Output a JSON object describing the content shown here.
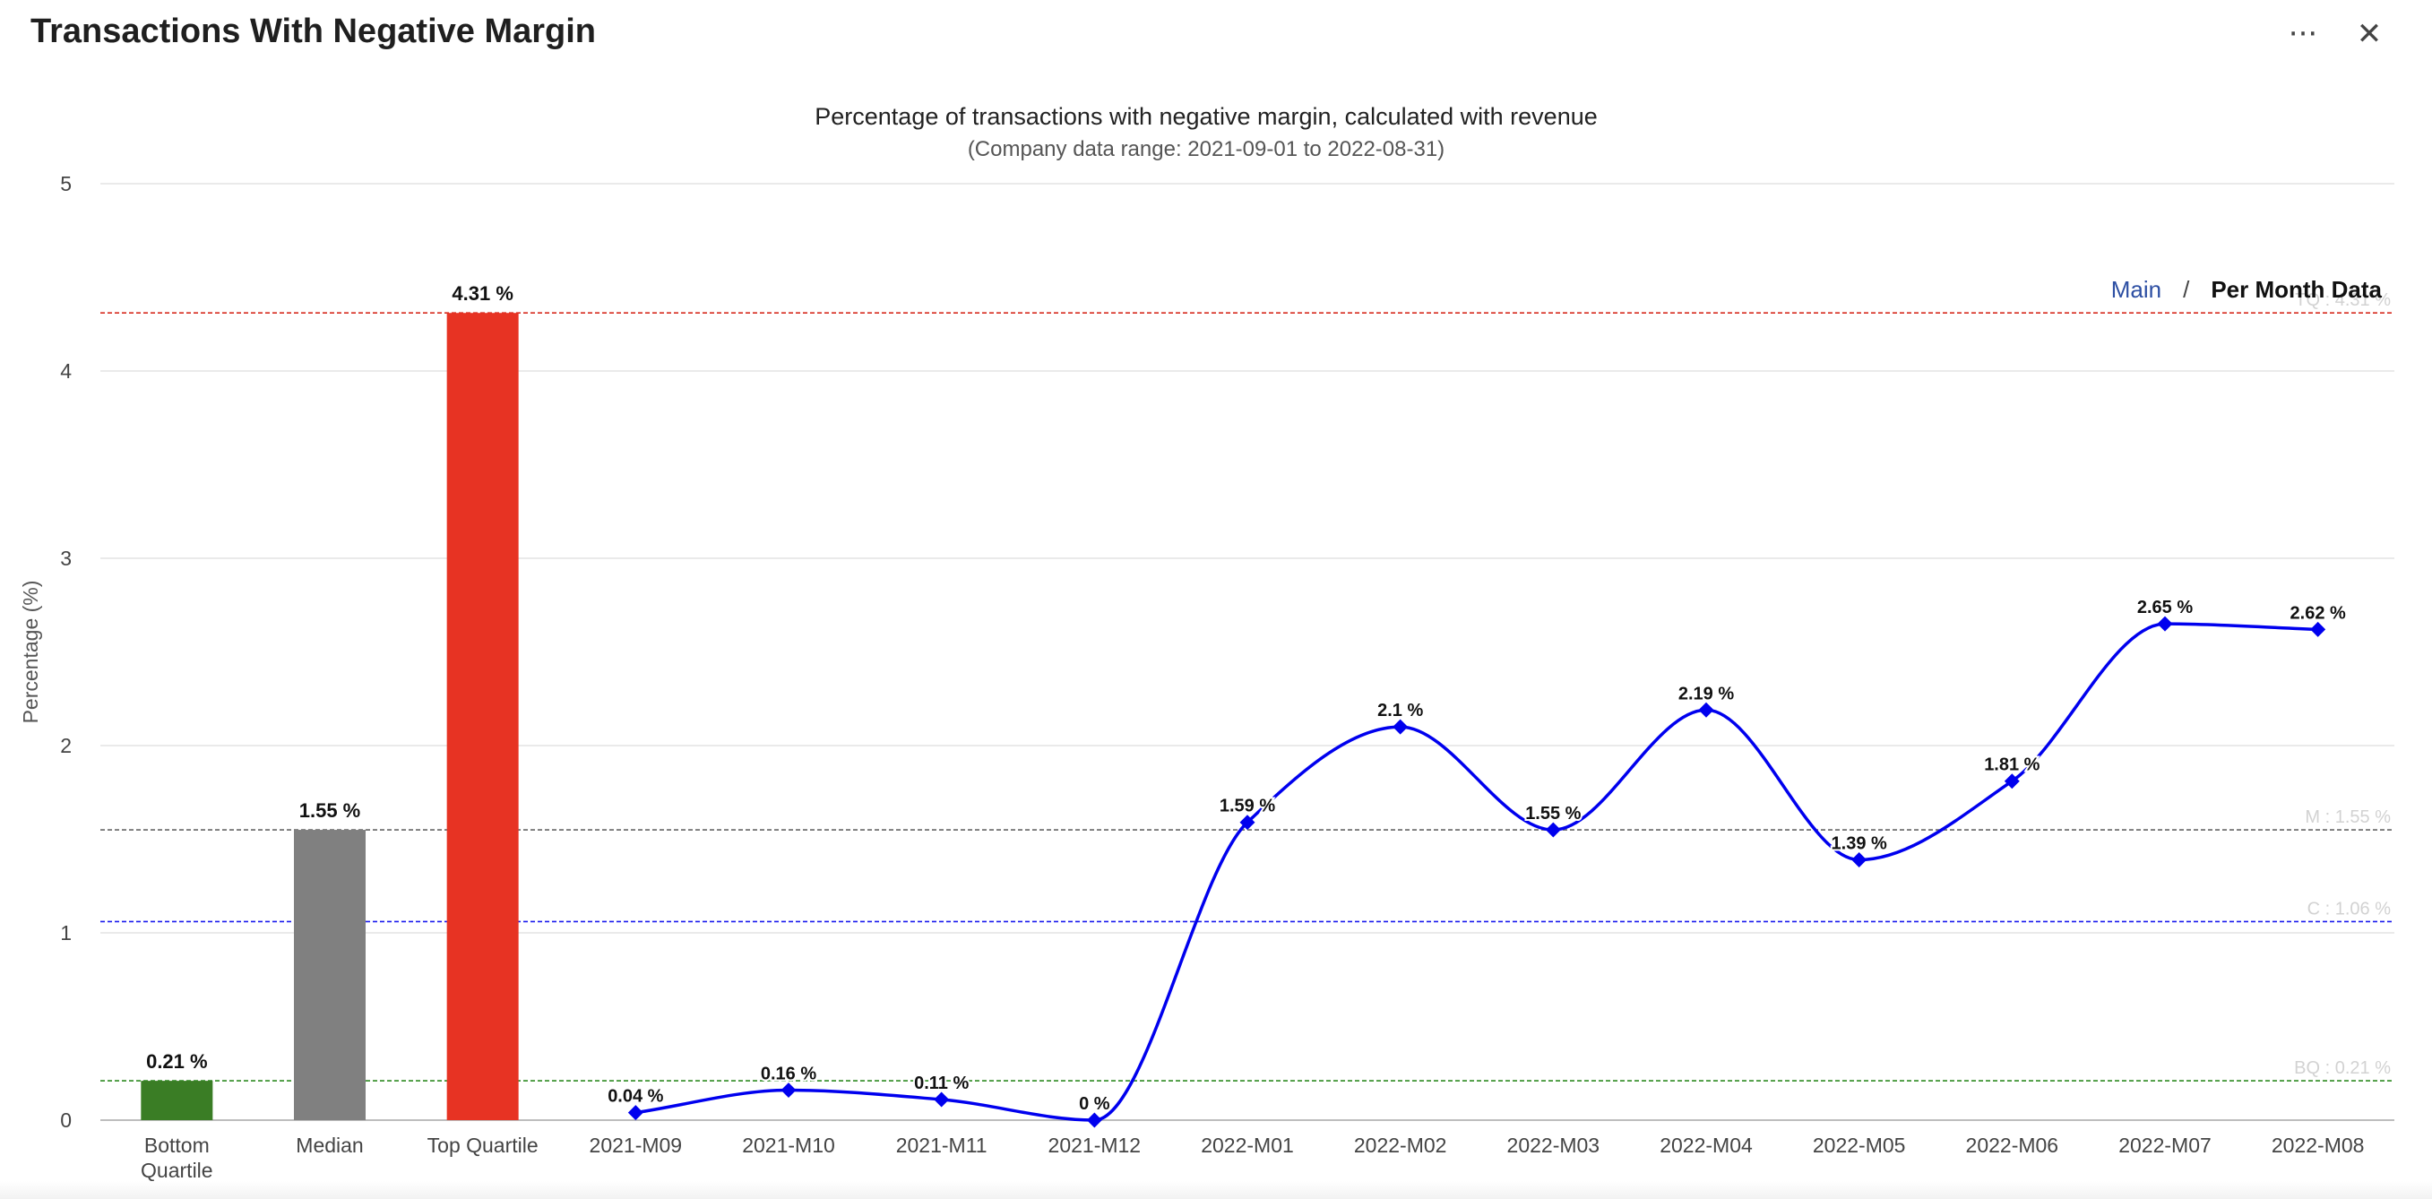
{
  "header": {
    "title": "Transactions With Negative Margin",
    "more_icon": "more-horizontal-icon",
    "close_icon": "close-icon"
  },
  "view_toggle": {
    "main_label": "Main",
    "separator": "/",
    "active_label": "Per Month Data"
  },
  "chart_data": {
    "type": "bar+line",
    "title": "Percentage of transactions with negative margin, calculated with revenue",
    "subtitle": "(Company data range: 2021-09-01 to 2022-08-31)",
    "ylabel": "Percentage (%)",
    "xlabel": "",
    "ylim": [
      0,
      5
    ],
    "yticks": [
      0,
      1,
      2,
      3,
      4,
      5
    ],
    "grid": true,
    "categories": [
      "Bottom\nQuartile",
      "Median",
      "Top Quartile",
      "2021-M09",
      "2021-M10",
      "2021-M11",
      "2021-M12",
      "2022-M01",
      "2022-M02",
      "2022-M03",
      "2022-M04",
      "2022-M05",
      "2022-M06",
      "2022-M07",
      "2022-M08"
    ],
    "bars": [
      {
        "category": "Bottom\nQuartile",
        "value": 0.21,
        "label": "0.21 %",
        "color": "#3a7d25"
      },
      {
        "category": "Median",
        "value": 1.55,
        "label": "1.55 %",
        "color": "#808080"
      },
      {
        "category": "Top Quartile",
        "value": 4.31,
        "label": "4.31 %",
        "color": "#e73323"
      }
    ],
    "line": {
      "color": "#0000ee",
      "points": [
        {
          "x": "2021-M09",
          "y": 0.04,
          "label": "0.04 %"
        },
        {
          "x": "2021-M10",
          "y": 0.16,
          "label": "0.16 %"
        },
        {
          "x": "2021-M11",
          "y": 0.11,
          "label": "0.11 %"
        },
        {
          "x": "2021-M12",
          "y": 0,
          "label": "0 %"
        },
        {
          "x": "2022-M01",
          "y": 1.59,
          "label": "1.59 %"
        },
        {
          "x": "2022-M02",
          "y": 2.1,
          "label": "2.1 %"
        },
        {
          "x": "2022-M03",
          "y": 1.55,
          "label": "1.55 %"
        },
        {
          "x": "2022-M04",
          "y": 2.19,
          "label": "2.19 %"
        },
        {
          "x": "2022-M05",
          "y": 1.39,
          "label": "1.39 %"
        },
        {
          "x": "2022-M06",
          "y": 1.81,
          "label": "1.81 %"
        },
        {
          "x": "2022-M07",
          "y": 2.65,
          "label": "2.65 %"
        },
        {
          "x": "2022-M08",
          "y": 2.62,
          "label": "2.62 %"
        }
      ]
    },
    "reference_lines": [
      {
        "value": 4.31,
        "label": "TQ : 4.31 %",
        "color": "#d62a1e"
      },
      {
        "value": 1.55,
        "label": "M : 1.55 %",
        "color": "#666666"
      },
      {
        "value": 1.06,
        "label": "C : 1.06 %",
        "color": "#1a1aee"
      },
      {
        "value": 0.21,
        "label": "BQ : 0.21 %",
        "color": "#2e8b22"
      }
    ]
  }
}
